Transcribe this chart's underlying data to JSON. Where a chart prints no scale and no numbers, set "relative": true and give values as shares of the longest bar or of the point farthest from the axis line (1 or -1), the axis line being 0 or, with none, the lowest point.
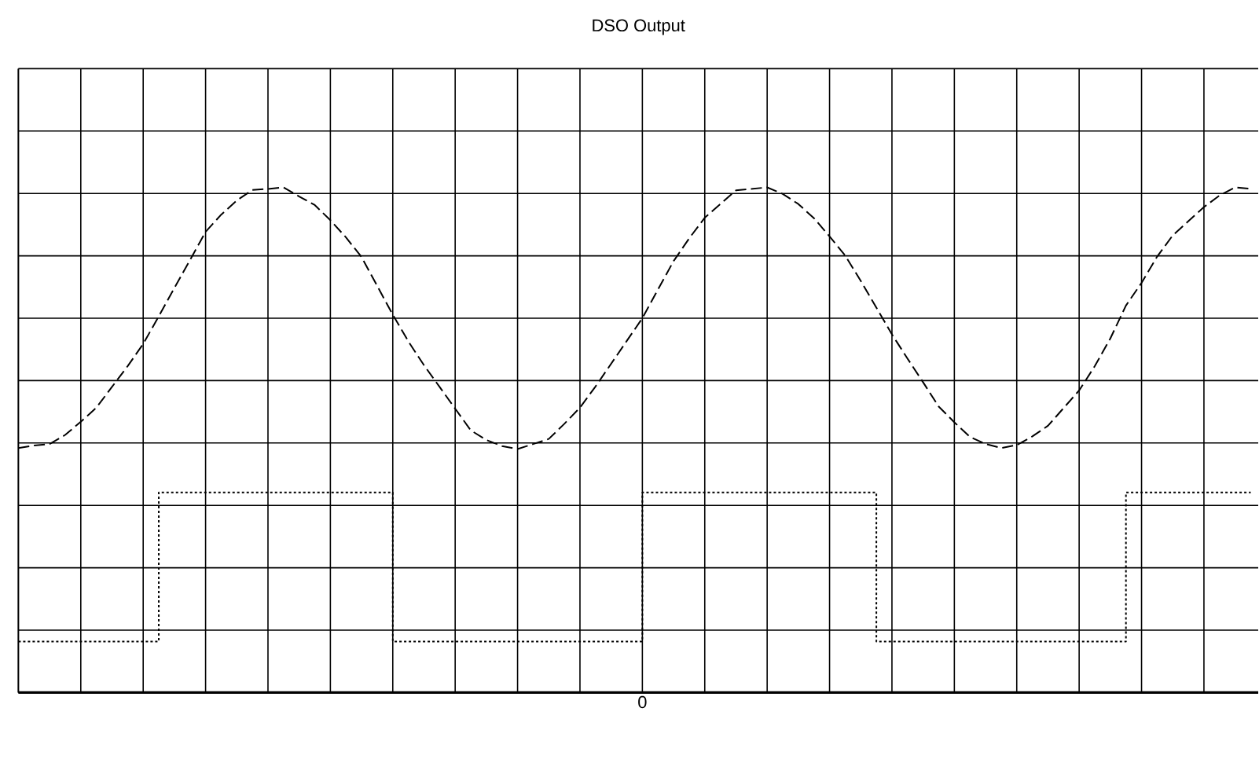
{
  "chart_data": {
    "type": "line",
    "title": "DSO Output",
    "relative": true,
    "grid": true,
    "marker": "none",
    "annotations": [
      "0"
    ],
    "categories": [
      null,
      null,
      null,
      null,
      null,
      null,
      null,
      null,
      null,
      null,
      null,
      null,
      null,
      null,
      null,
      null,
      null,
      null,
      null,
      null,
      null,
      null,
      null,
      null,
      null,
      null,
      null,
      null,
      null,
      null,
      null,
      null,
      null,
      null,
      null,
      null,
      null,
      null,
      null,
      null,
      null,
      null,
      null,
      null,
      null,
      null,
      null,
      null,
      null,
      null,
      null,
      null,
      null,
      null,
      null,
      null,
      null,
      null,
      null,
      null,
      null,
      null,
      null,
      null,
      null,
      null,
      null,
      null,
      null,
      null,
      null,
      null,
      null,
      null,
      null,
      null,
      null,
      null,
      null,
      null
    ],
    "series": [
      {
        "color": "#000000",
        "line_style": "dashed",
        "values": [
          0.484,
          0.489,
          0.492,
          0.51,
          0.536,
          0.564,
          0.605,
          0.646,
          0.69,
          0.745,
          0.801,
          0.856,
          0.912,
          0.946,
          0.974,
          0.995,
          0.997,
          1.0,
          0.982,
          0.965,
          0.935,
          0.901,
          0.862,
          0.805,
          0.748,
          0.695,
          0.648,
          0.605,
          0.562,
          0.519,
          0.5,
          0.488,
          0.482,
          0.492,
          0.502,
          0.532,
          0.564,
          0.606,
          0.651,
          0.696,
          0.741,
          0.798,
          0.854,
          0.899,
          0.94,
          0.967,
          0.994,
          0.997,
          1.0,
          0.987,
          0.967,
          0.939,
          0.903,
          0.865,
          0.815,
          0.762,
          0.709,
          0.661,
          0.614,
          0.566,
          0.535,
          0.506,
          0.492,
          0.484,
          0.49,
          0.507,
          0.528,
          0.563,
          0.598,
          0.646,
          0.701,
          0.766,
          0.811,
          0.863,
          0.905,
          0.933,
          0.961,
          0.984,
          1.0,
          0.997
        ]
      },
      {
        "type": "step",
        "color": "#000000",
        "line_style": "dotted",
        "values": [
          0.101,
          0.101,
          0.101,
          0.101,
          0.101,
          0.101,
          0.101,
          0.101,
          0.101,
          0.396,
          0.396,
          0.396,
          0.396,
          0.396,
          0.396,
          0.396,
          0.396,
          0.396,
          0.396,
          0.396,
          0.396,
          0.396,
          0.396,
          0.396,
          0.101,
          0.101,
          0.101,
          0.101,
          0.101,
          0.101,
          0.101,
          0.101,
          0.101,
          0.101,
          0.101,
          0.101,
          0.101,
          0.101,
          0.101,
          0.101,
          0.396,
          0.396,
          0.396,
          0.396,
          0.396,
          0.396,
          0.396,
          0.396,
          0.396,
          0.396,
          0.396,
          0.396,
          0.396,
          0.396,
          0.396,
          0.101,
          0.101,
          0.101,
          0.101,
          0.101,
          0.101,
          0.101,
          0.101,
          0.101,
          0.101,
          0.101,
          0.101,
          0.101,
          0.101,
          0.101,
          0.101,
          0.396,
          0.396,
          0.396,
          0.396,
          0.396,
          0.396,
          0.396,
          0.396,
          0.396
        ]
      }
    ]
  }
}
